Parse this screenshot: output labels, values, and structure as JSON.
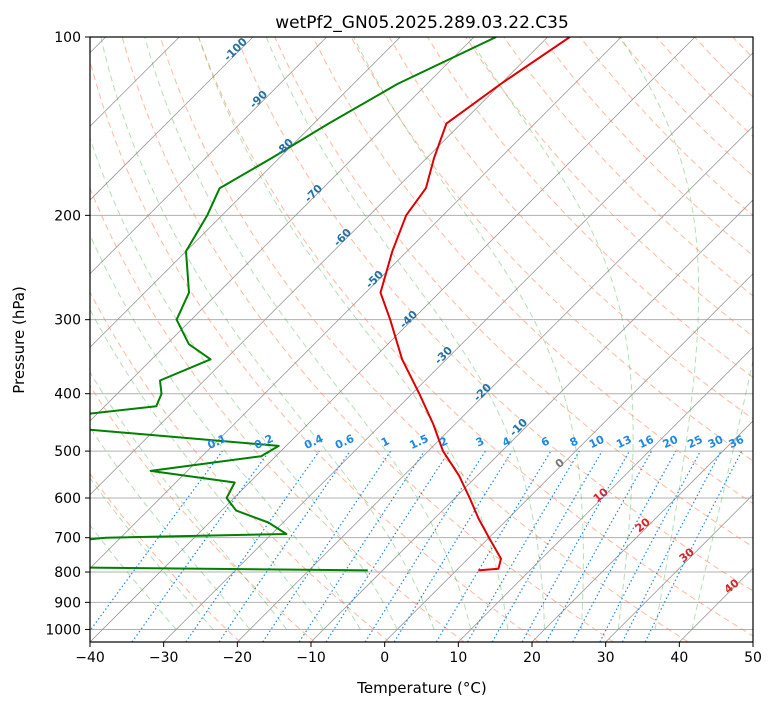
{
  "chart_data": {
    "type": "line",
    "title": "wetPf2_GN05.2025.289.03.22.C35",
    "xlabel": "Temperature (°C)",
    "ylabel": "Pressure (hPa)",
    "xlim": [
      -40,
      50
    ],
    "ylim": [
      1050,
      100
    ],
    "y_scale": "log",
    "skew": "skew-T",
    "grid": true,
    "x_ticks": [
      "−40",
      "−30",
      "−20",
      "−10",
      "0",
      "10",
      "20",
      "30",
      "40",
      "50"
    ],
    "y_ticks": [
      "100",
      "200",
      "300",
      "400",
      "500",
      "600",
      "700",
      "800",
      "900",
      "1000"
    ],
    "series": [
      {
        "color": "#dd0000",
        "points": [
          {
            "p": 100,
            "t": -57
          },
          {
            "p": 120,
            "t": -60
          },
          {
            "p": 140,
            "t": -62
          },
          {
            "p": 160,
            "t": -59
          },
          {
            "p": 180,
            "t": -56
          },
          {
            "p": 200,
            "t": -55
          },
          {
            "p": 230,
            "t": -52
          },
          {
            "p": 270,
            "t": -48
          },
          {
            "p": 300,
            "t": -43
          },
          {
            "p": 350,
            "t": -36
          },
          {
            "p": 400,
            "t": -29
          },
          {
            "p": 450,
            "t": -23
          },
          {
            "p": 500,
            "t": -18
          },
          {
            "p": 550,
            "t": -12.5
          },
          {
            "p": 600,
            "t": -8
          },
          {
            "p": 650,
            "t": -4
          },
          {
            "p": 700,
            "t": 0
          },
          {
            "p": 760,
            "t": 4.5
          },
          {
            "p": 790,
            "t": 5.5
          },
          {
            "p": 795,
            "t": 3
          }
        ]
      },
      {
        "color": "#008000",
        "points": [
          {
            "p": 100,
            "t": -67
          },
          {
            "p": 120,
            "t": -74
          },
          {
            "p": 140,
            "t": -78
          },
          {
            "p": 160,
            "t": -81
          },
          {
            "p": 180,
            "t": -84
          },
          {
            "p": 200,
            "t": -82
          },
          {
            "p": 230,
            "t": -80
          },
          {
            "p": 270,
            "t": -74
          },
          {
            "p": 300,
            "t": -72
          },
          {
            "p": 330,
            "t": -67
          },
          {
            "p": 350,
            "t": -62
          },
          {
            "p": 380,
            "t": -66
          },
          {
            "p": 400,
            "t": -64
          },
          {
            "p": 420,
            "t": -63
          },
          {
            "p": 440,
            "t": -76
          },
          {
            "p": 460,
            "t": -69
          },
          {
            "p": 490,
            "t": -41
          },
          {
            "p": 510,
            "t": -42
          },
          {
            "p": 540,
            "t": -55
          },
          {
            "p": 565,
            "t": -42
          },
          {
            "p": 600,
            "t": -41
          },
          {
            "p": 630,
            "t": -38
          },
          {
            "p": 660,
            "t": -32
          },
          {
            "p": 690,
            "t": -28
          },
          {
            "p": 700,
            "t": -52
          },
          {
            "p": 740,
            "t": -70
          },
          {
            "p": 765,
            "t": -62
          },
          {
            "p": 780,
            "t": -80
          },
          {
            "p": 795,
            "t": -12
          }
        ]
      }
    ],
    "dry_adiabat_labels": [
      "-100",
      "-90",
      "-80",
      "-70",
      "-60",
      "-50",
      "-40",
      "-30",
      "-20",
      "-10"
    ],
    "moist_adiabat_labels": [
      "0",
      "10",
      "20",
      "30",
      "40"
    ],
    "mixing_ratio_labels": [
      "0.1",
      "0.2",
      "0.4",
      "0.6",
      "1",
      "1.5",
      "2",
      "3",
      "4",
      "6",
      "8",
      "10",
      "13",
      "16",
      "20",
      "25",
      "30",
      "36"
    ],
    "colors": {
      "temperature": "#dd0000",
      "dewpoint": "#008000",
      "dry_adiabat": "#ff7f50",
      "moist_adiabat": "#2ca02c",
      "mixing_ratio": "#1e88e5",
      "dry_adiabat_label": "#2472a4",
      "moist_label": "#d62728",
      "isotherm": "#999999"
    }
  }
}
